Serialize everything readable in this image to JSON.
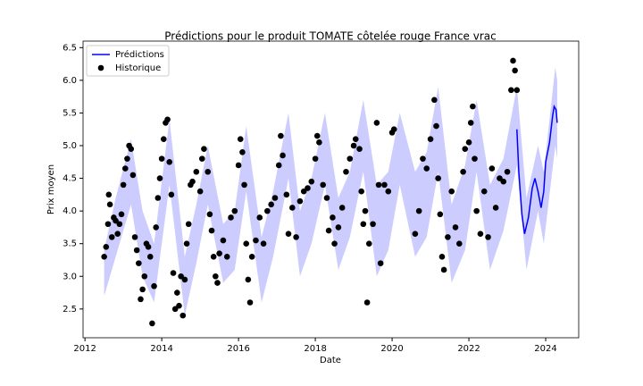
{
  "chart_data": {
    "type": "line",
    "title": "Prédictions pour le produit TOMATE côtelée rouge France vrac",
    "xlabel": "Date",
    "ylabel": "Prix moyen",
    "xlim": [
      2011.95,
      2024.86
    ],
    "ylim": [
      2.06,
      6.6
    ],
    "xticks": [
      2012,
      2014,
      2016,
      2018,
      2020,
      2022,
      2024
    ],
    "yticks": [
      2.5,
      {
        "value": 3,
        "label": "3.0"
      },
      3.5,
      {
        "value": 4,
        "label": "4.0"
      },
      4.5,
      {
        "value": 5,
        "label": "5.0"
      },
      5.5,
      {
        "value": 6,
        "label": "6.0"
      },
      6.5
    ],
    "legend": "upper left",
    "band": {
      "color": "#0000ff",
      "opacity": 0.2,
      "x": [
        2012.5,
        2012.8,
        2013.2,
        2013.5,
        2013.8,
        2014.2,
        2014.6,
        2014.9,
        2015.2,
        2015.6,
        2015.9,
        2016.2,
        2016.6,
        2016.9,
        2017.3,
        2017.6,
        2017.9,
        2018.25,
        2018.6,
        2018.9,
        2019.25,
        2019.6,
        2019.9,
        2020.2,
        2020.6,
        2020.9,
        2021.2,
        2021.55,
        2021.9,
        2022.2,
        2022.55,
        2022.9,
        2023.25,
        2023.5,
        2023.8,
        2023.95,
        2024.25,
        2024.3
      ],
      "lower": [
        2.7,
        3.3,
        4.1,
        3.0,
        2.6,
        4.4,
        2.4,
        3.2,
        4.1,
        2.9,
        3.1,
        4.3,
        2.6,
        3.3,
        4.5,
        3.0,
        3.5,
        4.4,
        3.1,
        3.6,
        4.6,
        3.0,
        3.4,
        4.4,
        3.3,
        3.6,
        4.6,
        2.9,
        3.4,
        4.6,
        3.1,
        3.7,
        4.7,
        3.1,
        4.0,
        3.5,
        5.0,
        4.8
      ],
      "upper": [
        3.4,
        4.2,
        5.1,
        4.0,
        3.5,
        5.4,
        3.3,
        4.1,
        5.0,
        3.8,
        4.0,
        5.3,
        3.6,
        4.3,
        5.5,
        4.0,
        4.5,
        5.5,
        4.2,
        4.6,
        5.7,
        4.4,
        4.6,
        5.5,
        4.6,
        4.9,
        5.9,
        4.1,
        4.7,
        5.7,
        4.4,
        4.8,
        5.9,
        4.2,
        5.0,
        4.6,
        6.2,
        6.0
      ]
    },
    "series": [
      {
        "name": "Prédictions",
        "color": "#0000ff",
        "style": "line",
        "x": [
          2023.25,
          2023.3,
          2023.38,
          2023.45,
          2023.55,
          2023.65,
          2023.72,
          2023.8,
          2023.88,
          2023.95,
          2024.0,
          2024.1,
          2024.18,
          2024.22,
          2024.27,
          2024.3
        ],
        "values": [
          5.25,
          4.6,
          3.95,
          3.65,
          3.9,
          4.35,
          4.5,
          4.3,
          4.05,
          4.3,
          4.75,
          5.05,
          5.45,
          5.6,
          5.55,
          5.35
        ]
      },
      {
        "name": "Historique",
        "color": "#000000",
        "style": "markers",
        "x": [
          2012.5,
          2012.55,
          2012.6,
          2012.62,
          2012.65,
          2012.7,
          2012.75,
          2012.8,
          2012.85,
          2012.9,
          2012.95,
          2013.0,
          2013.05,
          2013.1,
          2013.15,
          2013.2,
          2013.25,
          2013.3,
          2013.35,
          2013.4,
          2013.45,
          2013.5,
          2013.55,
          2013.6,
          2013.65,
          2013.7,
          2013.75,
          2013.8,
          2013.85,
          2013.9,
          2013.95,
          2014.0,
          2014.05,
          2014.1,
          2014.15,
          2014.2,
          2014.25,
          2014.3,
          2014.35,
          2014.4,
          2014.45,
          2014.5,
          2014.55,
          2014.6,
          2014.65,
          2014.7,
          2014.75,
          2014.8,
          2014.9,
          2015.0,
          2015.05,
          2015.1,
          2015.2,
          2015.25,
          2015.3,
          2015.35,
          2015.4,
          2015.45,
          2015.5,
          2015.6,
          2015.7,
          2015.8,
          2015.9,
          2016.0,
          2016.05,
          2016.1,
          2016.15,
          2016.2,
          2016.25,
          2016.3,
          2016.35,
          2016.45,
          2016.55,
          2016.65,
          2016.75,
          2016.85,
          2016.95,
          2017.05,
          2017.1,
          2017.15,
          2017.25,
          2017.3,
          2017.4,
          2017.5,
          2017.6,
          2017.7,
          2017.8,
          2017.9,
          2018.0,
          2018.05,
          2018.1,
          2018.2,
          2018.3,
          2018.35,
          2018.45,
          2018.5,
          2018.6,
          2018.7,
          2018.8,
          2018.9,
          2019.0,
          2019.05,
          2019.15,
          2019.2,
          2019.25,
          2019.3,
          2019.35,
          2019.4,
          2019.5,
          2019.6,
          2019.65,
          2019.7,
          2019.8,
          2019.9,
          2020.0,
          2020.05,
          2020.6,
          2020.7,
          2020.8,
          2020.9,
          2021.0,
          2021.1,
          2021.15,
          2021.2,
          2021.25,
          2021.3,
          2021.35,
          2021.45,
          2021.55,
          2021.65,
          2021.75,
          2021.85,
          2021.9,
          2022.0,
          2022.05,
          2022.1,
          2022.15,
          2022.2,
          2022.3,
          2022.4,
          2022.5,
          2022.6,
          2022.7,
          2022.8,
          2022.9,
          2023.0,
          2023.1,
          2023.15,
          2023.2,
          2023.25
        ],
        "values": [
          3.3,
          3.45,
          3.8,
          4.25,
          4.1,
          3.6,
          3.9,
          3.85,
          3.65,
          3.8,
          3.95,
          4.4,
          4.65,
          4.8,
          5.0,
          4.95,
          4.55,
          3.6,
          3.4,
          3.2,
          2.65,
          2.8,
          3.0,
          3.5,
          3.45,
          3.3,
          2.28,
          2.85,
          3.75,
          4.2,
          4.5,
          4.8,
          5.1,
          5.35,
          5.4,
          4.75,
          4.25,
          3.05,
          2.5,
          2.75,
          2.55,
          3.0,
          2.4,
          2.95,
          3.5,
          3.8,
          4.4,
          4.45,
          4.6,
          4.3,
          4.8,
          4.95,
          4.6,
          3.95,
          3.7,
          3.3,
          3.0,
          2.9,
          3.35,
          3.55,
          3.3,
          3.9,
          4.0,
          4.7,
          5.1,
          4.9,
          4.4,
          3.5,
          2.95,
          2.6,
          3.3,
          3.55,
          3.9,
          3.5,
          4.0,
          4.1,
          4.2,
          4.7,
          5.15,
          4.85,
          4.25,
          3.65,
          4.05,
          3.6,
          4.15,
          4.3,
          4.35,
          4.45,
          4.8,
          5.15,
          5.05,
          4.4,
          4.2,
          3.7,
          3.9,
          3.5,
          3.75,
          4.05,
          4.6,
          4.8,
          5.0,
          5.1,
          4.95,
          4.3,
          3.8,
          4.0,
          2.6,
          3.5,
          3.8,
          5.35,
          4.4,
          3.2,
          4.4,
          4.3,
          5.2,
          5.25,
          3.65,
          4.0,
          4.8,
          4.65,
          5.1,
          5.7,
          5.3,
          4.5,
          3.95,
          3.3,
          3.1,
          3.6,
          4.3,
          3.75,
          3.5,
          4.6,
          4.95,
          5.05,
          5.35,
          5.6,
          4.8,
          4.0,
          3.65,
          4.3,
          3.6,
          4.65,
          4.05,
          4.5,
          4.45,
          4.6,
          5.85,
          6.3,
          6.15,
          5.85
        ]
      }
    ]
  }
}
